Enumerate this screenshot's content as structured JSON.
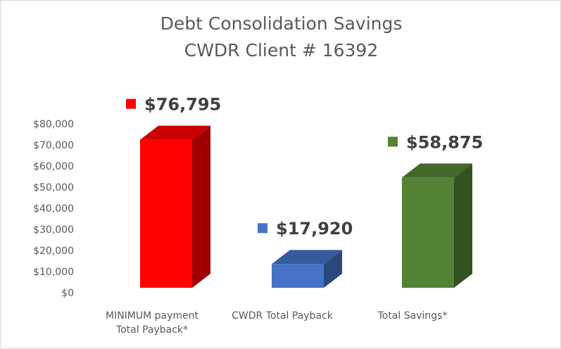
{
  "chart_data": {
    "type": "bar",
    "title": "Debt Consolidation Savings",
    "subtitle": "CWDR Client # 16392",
    "categories": [
      [
        "MINIMUM payment",
        "Total Payback*"
      ],
      [
        "CWDR Total Payback"
      ],
      [
        "Total Savings*"
      ]
    ],
    "values": [
      76795,
      17920,
      58875
    ],
    "data_labels": [
      "$76,795",
      "$17,920",
      "$58,875"
    ],
    "colors": [
      "#ff0000",
      "#4472c4",
      "#548235"
    ],
    "ylim": [
      0,
      80000
    ],
    "yticks": [
      0,
      10000,
      20000,
      30000,
      40000,
      50000,
      60000,
      70000,
      80000
    ],
    "ytick_labels": [
      "$0",
      "$10,000",
      "$20,000",
      "$30,000",
      "$40,000",
      "$50,000",
      "$60,000",
      "$70,000",
      "$80,000"
    ],
    "grid": false,
    "style": "3d-column"
  }
}
